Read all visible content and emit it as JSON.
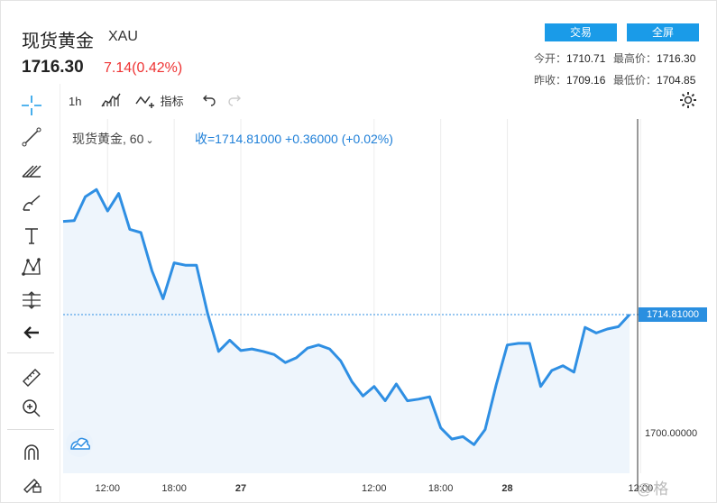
{
  "header": {
    "title": "现货黄金",
    "ticker": "XAU",
    "price": "1716.30",
    "change": "7.14(0.42%)",
    "buttons": {
      "trade": "交易",
      "fullscreen": "全屏"
    },
    "stats": {
      "open_label": "今开：",
      "open": "1710.71",
      "high_label": "最高价：",
      "high": "1716.30",
      "prev_close_label": "昨收：",
      "prev_close": "1709.16",
      "low_label": "最低价：",
      "low": "1704.85"
    }
  },
  "toolbar": {
    "interval": "1h",
    "indicators_label": "指标"
  },
  "legend": {
    "symbol": "现货黄金, 60",
    "close": "收=1714.81000 +0.36000 (+0.02%)"
  },
  "watermark": "@格",
  "colors": {
    "accent": "#1a9be8",
    "line": "#2f8fe3",
    "down": "#e33333"
  },
  "chart_data": {
    "type": "area",
    "title": "",
    "xlabel": "",
    "ylabel": "",
    "y_ticks": [
      1700
    ],
    "y_tick_labels": [
      "1700.00000"
    ],
    "current_value": 1714.81,
    "current_value_label": "1714.81000",
    "x_tick_labels": [
      "12:00",
      "18:00",
      "27",
      "12:00",
      "18:00",
      "28",
      "12:00"
    ],
    "x_tick_index": [
      4,
      10,
      16,
      28,
      34,
      40,
      52
    ],
    "grid": true,
    "series": [
      {
        "values": [
          1726.5,
          1726.6,
          1729.6,
          1730.5,
          1727.8,
          1730.0,
          1725.5,
          1725.1,
          1720.3,
          1716.8,
          1721.3,
          1721.0,
          1721.0,
          1715.0,
          1710.2,
          1711.6,
          1710.3,
          1710.5,
          1710.2,
          1709.8,
          1708.8,
          1709.4,
          1710.6,
          1711.0,
          1710.5,
          1709.0,
          1706.4,
          1704.6,
          1705.8,
          1704.0,
          1706.1,
          1704.0,
          1704.2,
          1704.5,
          1700.6,
          1699.2,
          1699.5,
          1698.5,
          1700.4,
          1706.0,
          1711.0,
          1711.2,
          1711.2,
          1705.8,
          1707.8,
          1708.4,
          1707.6,
          1713.2,
          1712.5,
          1713.0,
          1713.3,
          1714.81
        ]
      }
    ]
  }
}
